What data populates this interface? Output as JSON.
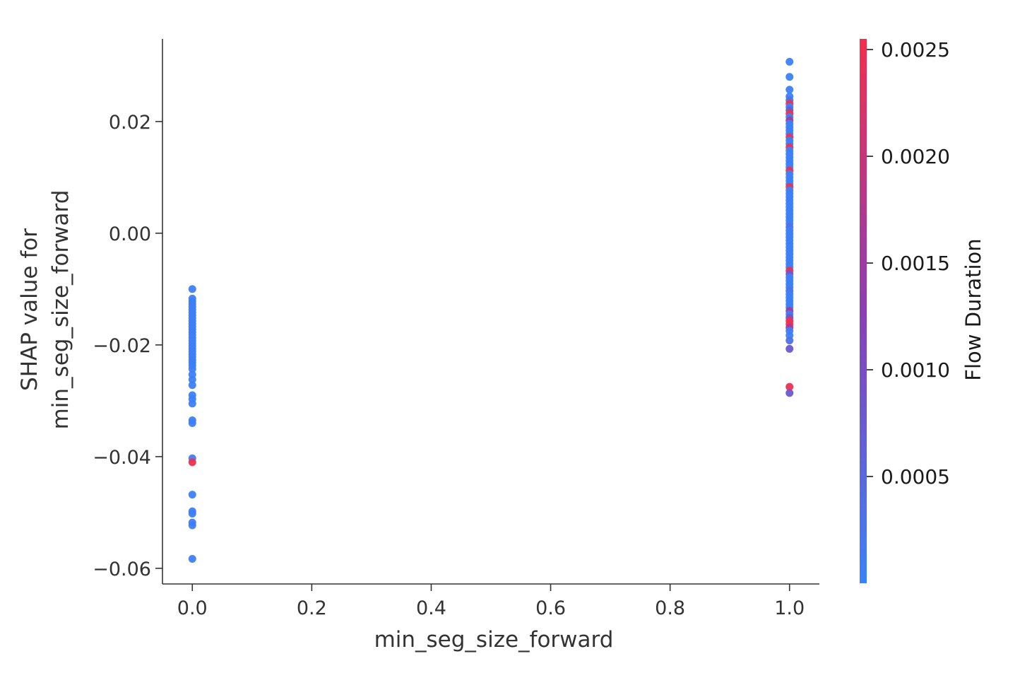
{
  "chart_data": {
    "type": "scatter",
    "xlabel": "min_seg_size_forward",
    "ylabel_lines": [
      "SHAP value for",
      "min_seg_size_forward"
    ],
    "xlim": [
      -0.05,
      1.05
    ],
    "ylim": [
      -0.0628,
      0.0348
    ],
    "x_ticks": [
      0.0,
      0.2,
      0.4,
      0.6,
      0.8,
      1.0
    ],
    "x_tick_labels": [
      "0.0",
      "0.2",
      "0.4",
      "0.6",
      "0.8",
      "1.0"
    ],
    "y_ticks": [
      0.02,
      0.0,
      -0.02,
      -0.04,
      -0.06
    ],
    "y_tick_labels": [
      "0.02",
      "0.00",
      "−0.02",
      "−0.04",
      "−0.06"
    ],
    "grid": false,
    "colorbar": {
      "title": "Flow Duration",
      "range": [
        0.0,
        0.00255
      ],
      "ticks": [
        0.0025,
        0.002,
        0.0015,
        0.001,
        0.0005
      ],
      "tick_labels": [
        "0.0025",
        "0.0020",
        "0.0015",
        "0.0010",
        "0.0005"
      ],
      "colors": {
        "low": "#3b82f6",
        "mid": "#8a3fb3",
        "high": "#f0304e"
      }
    },
    "points": [
      {
        "x": 0.0,
        "y": -0.01,
        "c": 5e-05
      },
      {
        "x": 0.0,
        "y": -0.0117,
        "c": 5e-05
      },
      {
        "x": 0.0,
        "y": -0.0122,
        "c": 5e-05
      },
      {
        "x": 0.0,
        "y": -0.0127,
        "c": 5e-05
      },
      {
        "x": 0.0,
        "y": -0.0132,
        "c": 5e-05
      },
      {
        "x": 0.0,
        "y": -0.0137,
        "c": 5e-05
      },
      {
        "x": 0.0,
        "y": -0.0142,
        "c": 5e-05
      },
      {
        "x": 0.0,
        "y": -0.0147,
        "c": 5e-05
      },
      {
        "x": 0.0,
        "y": -0.0152,
        "c": 5e-05
      },
      {
        "x": 0.0,
        "y": -0.0157,
        "c": 5e-05
      },
      {
        "x": 0.0,
        "y": -0.0162,
        "c": 5e-05
      },
      {
        "x": 0.0,
        "y": -0.0167,
        "c": 5e-05
      },
      {
        "x": 0.0,
        "y": -0.0172,
        "c": 5e-05
      },
      {
        "x": 0.0,
        "y": -0.0177,
        "c": 5e-05
      },
      {
        "x": 0.0,
        "y": -0.0182,
        "c": 5e-05
      },
      {
        "x": 0.0,
        "y": -0.0187,
        "c": 5e-05
      },
      {
        "x": 0.0,
        "y": -0.0192,
        "c": 5e-05
      },
      {
        "x": 0.0,
        "y": -0.0197,
        "c": 5e-05
      },
      {
        "x": 0.0,
        "y": -0.0202,
        "c": 5e-05
      },
      {
        "x": 0.0,
        "y": -0.0207,
        "c": 5e-05
      },
      {
        "x": 0.0,
        "y": -0.0212,
        "c": 5e-05
      },
      {
        "x": 0.0,
        "y": -0.0217,
        "c": 5e-05
      },
      {
        "x": 0.0,
        "y": -0.0222,
        "c": 5e-05
      },
      {
        "x": 0.0,
        "y": -0.0227,
        "c": 5e-05
      },
      {
        "x": 0.0,
        "y": -0.0232,
        "c": 5e-05
      },
      {
        "x": 0.0,
        "y": -0.0237,
        "c": 5e-05
      },
      {
        "x": 0.0,
        "y": -0.0243,
        "c": 5e-05
      },
      {
        "x": 0.0,
        "y": -0.0253,
        "c": 5e-05
      },
      {
        "x": 0.0,
        "y": -0.0262,
        "c": 5e-05
      },
      {
        "x": 0.0,
        "y": -0.0272,
        "c": 5e-05
      },
      {
        "x": 0.0,
        "y": -0.029,
        "c": 5e-05
      },
      {
        "x": 0.0,
        "y": -0.0297,
        "c": 5e-05
      },
      {
        "x": 0.0,
        "y": -0.0305,
        "c": 5e-05
      },
      {
        "x": 0.0,
        "y": -0.0335,
        "c": 5e-05
      },
      {
        "x": 0.0,
        "y": -0.034,
        "c": 5e-05
      },
      {
        "x": 0.0,
        "y": -0.0403,
        "c": 5e-05
      },
      {
        "x": 0.0,
        "y": -0.041,
        "c": 0.0025
      },
      {
        "x": 0.0,
        "y": -0.0468,
        "c": 5e-05
      },
      {
        "x": 0.0,
        "y": -0.0498,
        "c": 5e-05
      },
      {
        "x": 0.0,
        "y": -0.0502,
        "c": 5e-05
      },
      {
        "x": 0.0,
        "y": -0.0518,
        "c": 5e-05
      },
      {
        "x": 0.0,
        "y": -0.0523,
        "c": 5e-05
      },
      {
        "x": 0.0,
        "y": -0.0583,
        "c": 5e-05
      },
      {
        "x": 1.0,
        "y": 0.0307,
        "c": 5e-05
      },
      {
        "x": 1.0,
        "y": 0.028,
        "c": 5e-05
      },
      {
        "x": 1.0,
        "y": 0.0257,
        "c": 5e-05
      },
      {
        "x": 1.0,
        "y": 0.0245,
        "c": 5e-05
      },
      {
        "x": 1.0,
        "y": 0.0238,
        "c": 0.0003
      },
      {
        "x": 1.0,
        "y": 0.0232,
        "c": 0.0025
      },
      {
        "x": 1.0,
        "y": 0.0226,
        "c": 5e-05
      },
      {
        "x": 1.0,
        "y": 0.022,
        "c": 0.0008
      },
      {
        "x": 1.0,
        "y": 0.0214,
        "c": 0.0025
      },
      {
        "x": 1.0,
        "y": 0.0208,
        "c": 5e-05
      },
      {
        "x": 1.0,
        "y": 0.0202,
        "c": 0.0016
      },
      {
        "x": 1.0,
        "y": 0.0196,
        "c": 5e-05
      },
      {
        "x": 1.0,
        "y": 0.019,
        "c": 5e-05
      },
      {
        "x": 1.0,
        "y": 0.0184,
        "c": 5e-05
      },
      {
        "x": 1.0,
        "y": 0.0178,
        "c": 5e-05
      },
      {
        "x": 1.0,
        "y": 0.0172,
        "c": 0.0025
      },
      {
        "x": 1.0,
        "y": 0.0166,
        "c": 5e-05
      },
      {
        "x": 1.0,
        "y": 0.016,
        "c": 5e-05
      },
      {
        "x": 1.0,
        "y": 0.0154,
        "c": 0.0025
      },
      {
        "x": 1.0,
        "y": 0.0148,
        "c": 5e-05
      },
      {
        "x": 1.0,
        "y": 0.0142,
        "c": 5e-05
      },
      {
        "x": 1.0,
        "y": 0.0136,
        "c": 5e-05
      },
      {
        "x": 1.0,
        "y": 0.013,
        "c": 5e-05
      },
      {
        "x": 1.0,
        "y": 0.0124,
        "c": 5e-05
      },
      {
        "x": 1.0,
        "y": 0.0118,
        "c": 5e-05
      },
      {
        "x": 1.0,
        "y": 0.0112,
        "c": 0.0025
      },
      {
        "x": 1.0,
        "y": 0.0106,
        "c": 5e-05
      },
      {
        "x": 1.0,
        "y": 0.01,
        "c": 5e-05
      },
      {
        "x": 1.0,
        "y": 0.0094,
        "c": 5e-05
      },
      {
        "x": 1.0,
        "y": 0.0088,
        "c": 5e-05
      },
      {
        "x": 1.0,
        "y": 0.0083,
        "c": 0.0025
      },
      {
        "x": 1.0,
        "y": 0.0077,
        "c": 5e-05
      },
      {
        "x": 1.0,
        "y": 0.0071,
        "c": 5e-05
      },
      {
        "x": 1.0,
        "y": 0.0065,
        "c": 5e-05
      },
      {
        "x": 1.0,
        "y": 0.0059,
        "c": 5e-05
      },
      {
        "x": 1.0,
        "y": 0.0053,
        "c": 5e-05
      },
      {
        "x": 1.0,
        "y": 0.0047,
        "c": 5e-05
      },
      {
        "x": 1.0,
        "y": 0.0041,
        "c": 5e-05
      },
      {
        "x": 1.0,
        "y": 0.0035,
        "c": 5e-05
      },
      {
        "x": 1.0,
        "y": 0.0029,
        "c": 5e-05
      },
      {
        "x": 1.0,
        "y": 0.0023,
        "c": 5e-05
      },
      {
        "x": 1.0,
        "y": 0.0017,
        "c": 5e-05
      },
      {
        "x": 1.0,
        "y": 0.0011,
        "c": 0.0003
      },
      {
        "x": 1.0,
        "y": 0.0005,
        "c": 5e-05
      },
      {
        "x": 1.0,
        "y": -0.0001,
        "c": 5e-05
      },
      {
        "x": 1.0,
        "y": -0.0007,
        "c": 5e-05
      },
      {
        "x": 1.0,
        "y": -0.0013,
        "c": 5e-05
      },
      {
        "x": 1.0,
        "y": -0.0019,
        "c": 5e-05
      },
      {
        "x": 1.0,
        "y": -0.0025,
        "c": 5e-05
      },
      {
        "x": 1.0,
        "y": -0.0031,
        "c": 5e-05
      },
      {
        "x": 1.0,
        "y": -0.0037,
        "c": 5e-05
      },
      {
        "x": 1.0,
        "y": -0.0043,
        "c": 5e-05
      },
      {
        "x": 1.0,
        "y": -0.0049,
        "c": 5e-05
      },
      {
        "x": 1.0,
        "y": -0.0055,
        "c": 5e-05
      },
      {
        "x": 1.0,
        "y": -0.0061,
        "c": 5e-05
      },
      {
        "x": 1.0,
        "y": -0.0067,
        "c": 0.0025
      },
      {
        "x": 1.0,
        "y": -0.0073,
        "c": 0.0008
      },
      {
        "x": 1.0,
        "y": -0.0079,
        "c": 5e-05
      },
      {
        "x": 1.0,
        "y": -0.0085,
        "c": 5e-05
      },
      {
        "x": 1.0,
        "y": -0.0091,
        "c": 5e-05
      },
      {
        "x": 1.0,
        "y": -0.0097,
        "c": 5e-05
      },
      {
        "x": 1.0,
        "y": -0.0103,
        "c": 0.0003
      },
      {
        "x": 1.0,
        "y": -0.0109,
        "c": 5e-05
      },
      {
        "x": 1.0,
        "y": -0.0115,
        "c": 5e-05
      },
      {
        "x": 1.0,
        "y": -0.0121,
        "c": 5e-05
      },
      {
        "x": 1.0,
        "y": -0.0127,
        "c": 5e-05
      },
      {
        "x": 1.0,
        "y": -0.0133,
        "c": 5e-05
      },
      {
        "x": 1.0,
        "y": -0.0139,
        "c": 0.0016
      },
      {
        "x": 1.0,
        "y": -0.0145,
        "c": 5e-05
      },
      {
        "x": 1.0,
        "y": -0.0151,
        "c": 0.0008
      },
      {
        "x": 1.0,
        "y": -0.0157,
        "c": 0.0025
      },
      {
        "x": 1.0,
        "y": -0.0163,
        "c": 0.0025
      },
      {
        "x": 1.0,
        "y": -0.0169,
        "c": 0.0016
      },
      {
        "x": 1.0,
        "y": -0.0175,
        "c": 5e-05
      },
      {
        "x": 1.0,
        "y": -0.0183,
        "c": 5e-05
      },
      {
        "x": 1.0,
        "y": -0.0192,
        "c": 0.0003
      },
      {
        "x": 1.0,
        "y": -0.0207,
        "c": 0.0008
      },
      {
        "x": 1.0,
        "y": -0.0275,
        "c": 0.0025
      },
      {
        "x": 1.0,
        "y": -0.0286,
        "c": 0.0008
      }
    ]
  }
}
